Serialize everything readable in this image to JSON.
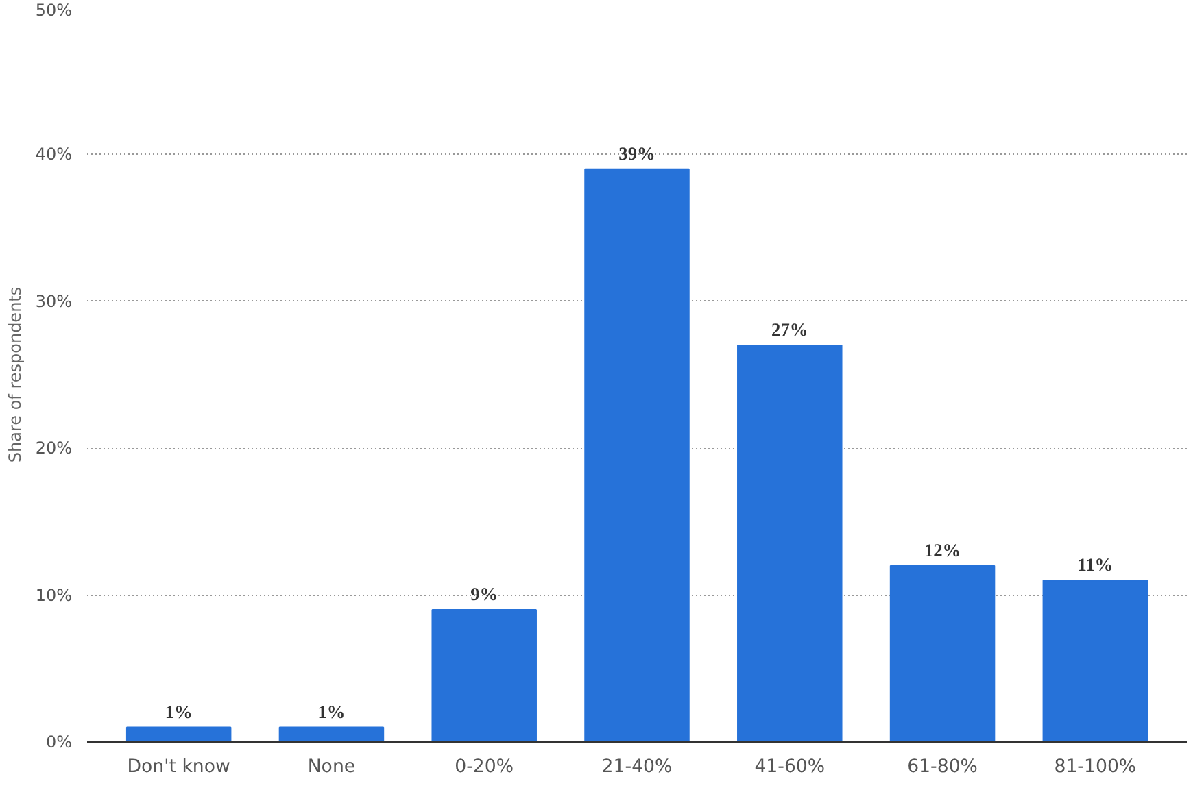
{
  "chart_data": {
    "type": "bar",
    "ylabel": "Share of respondents",
    "categories": [
      "Don't know",
      "None",
      "0-20%",
      "21-40%",
      "41-60%",
      "61-80%",
      "81-100%"
    ],
    "values": [
      1,
      1,
      9,
      39,
      27,
      12,
      11
    ],
    "value_labels": [
      "1%",
      "1%",
      "9%",
      "39%",
      "27%",
      "12%",
      "11%"
    ],
    "color": "#2672d9",
    "ylim": [
      0,
      50
    ],
    "yticks": [
      {
        "value": 0,
        "label": "0%"
      },
      {
        "value": 10,
        "label": "10%"
      },
      {
        "value": 20,
        "label": "20%"
      },
      {
        "value": 30,
        "label": "30%"
      },
      {
        "value": 40,
        "label": "40%"
      },
      {
        "value": 50,
        "label": "50%"
      }
    ],
    "grid": "y"
  }
}
